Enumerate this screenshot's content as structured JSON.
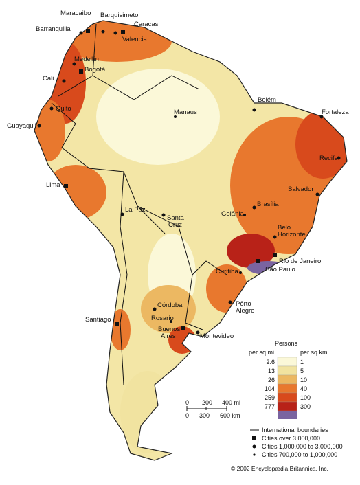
{
  "cities": [
    {
      "label": "Maracaibo"
    },
    {
      "label": "Barquisimeto"
    },
    {
      "label": "Caracas"
    },
    {
      "label": "Barranquilla"
    },
    {
      "label": "Valencia"
    },
    {
      "label": "Medellín"
    },
    {
      "label": "Bogotá"
    },
    {
      "label": "Cali"
    },
    {
      "label": "Quito"
    },
    {
      "label": "Guayaquil"
    },
    {
      "label": "Manaus"
    },
    {
      "label": "Belém"
    },
    {
      "label": "Fortaleza"
    },
    {
      "label": "Recife"
    },
    {
      "label": "Salvador"
    },
    {
      "label": "Lima"
    },
    {
      "label": "La Paz"
    },
    {
      "label_lines": [
        "Santa",
        "Cruz"
      ]
    },
    {
      "label": "Goiânia"
    },
    {
      "label": "Brasília"
    },
    {
      "label_lines": [
        "Belo",
        "Horizonte"
      ]
    },
    {
      "label": "Rio de Janeiro"
    },
    {
      "label": "São Paulo"
    },
    {
      "label": "Curitiba"
    },
    {
      "label_lines": [
        "Pôrto",
        "Alegre"
      ]
    },
    {
      "label": "Córdoba"
    },
    {
      "label": "Rosario"
    },
    {
      "label": "Santiago"
    },
    {
      "label_lines": [
        "Buenos",
        "Aires"
      ]
    },
    {
      "label": "Montevideo"
    }
  ],
  "legend": {
    "title": "Persons",
    "col_mi": "per sq mi",
    "col_km": "per sq km",
    "rows": [
      {
        "mi": 2.6,
        "km": 1,
        "color": "#fbf8d8"
      },
      {
        "mi": 13,
        "km": 5,
        "color": "#f1e3a0"
      },
      {
        "mi": 26,
        "km": 10,
        "color": "#ecb862"
      },
      {
        "mi": 104,
        "km": 40,
        "color": "#e8782e"
      },
      {
        "mi": 259,
        "km": 100,
        "color": "#d84a1c"
      },
      {
        "mi": 777,
        "km": 300,
        "color": "#b82218"
      }
    ],
    "top_color": "#7a64a0"
  },
  "scale": {
    "mi": [
      "0",
      "200",
      "400 mi"
    ],
    "km": [
      "0",
      "300",
      "600 km"
    ]
  },
  "key": [
    "International boundaries",
    "Cities over 3,000,000",
    "Cities 1,000,000 to 3,000,000",
    "Cities 700,000 to 1,000,000"
  ],
  "credit": "© 2002 Encyclopædia Britannica, Inc."
}
